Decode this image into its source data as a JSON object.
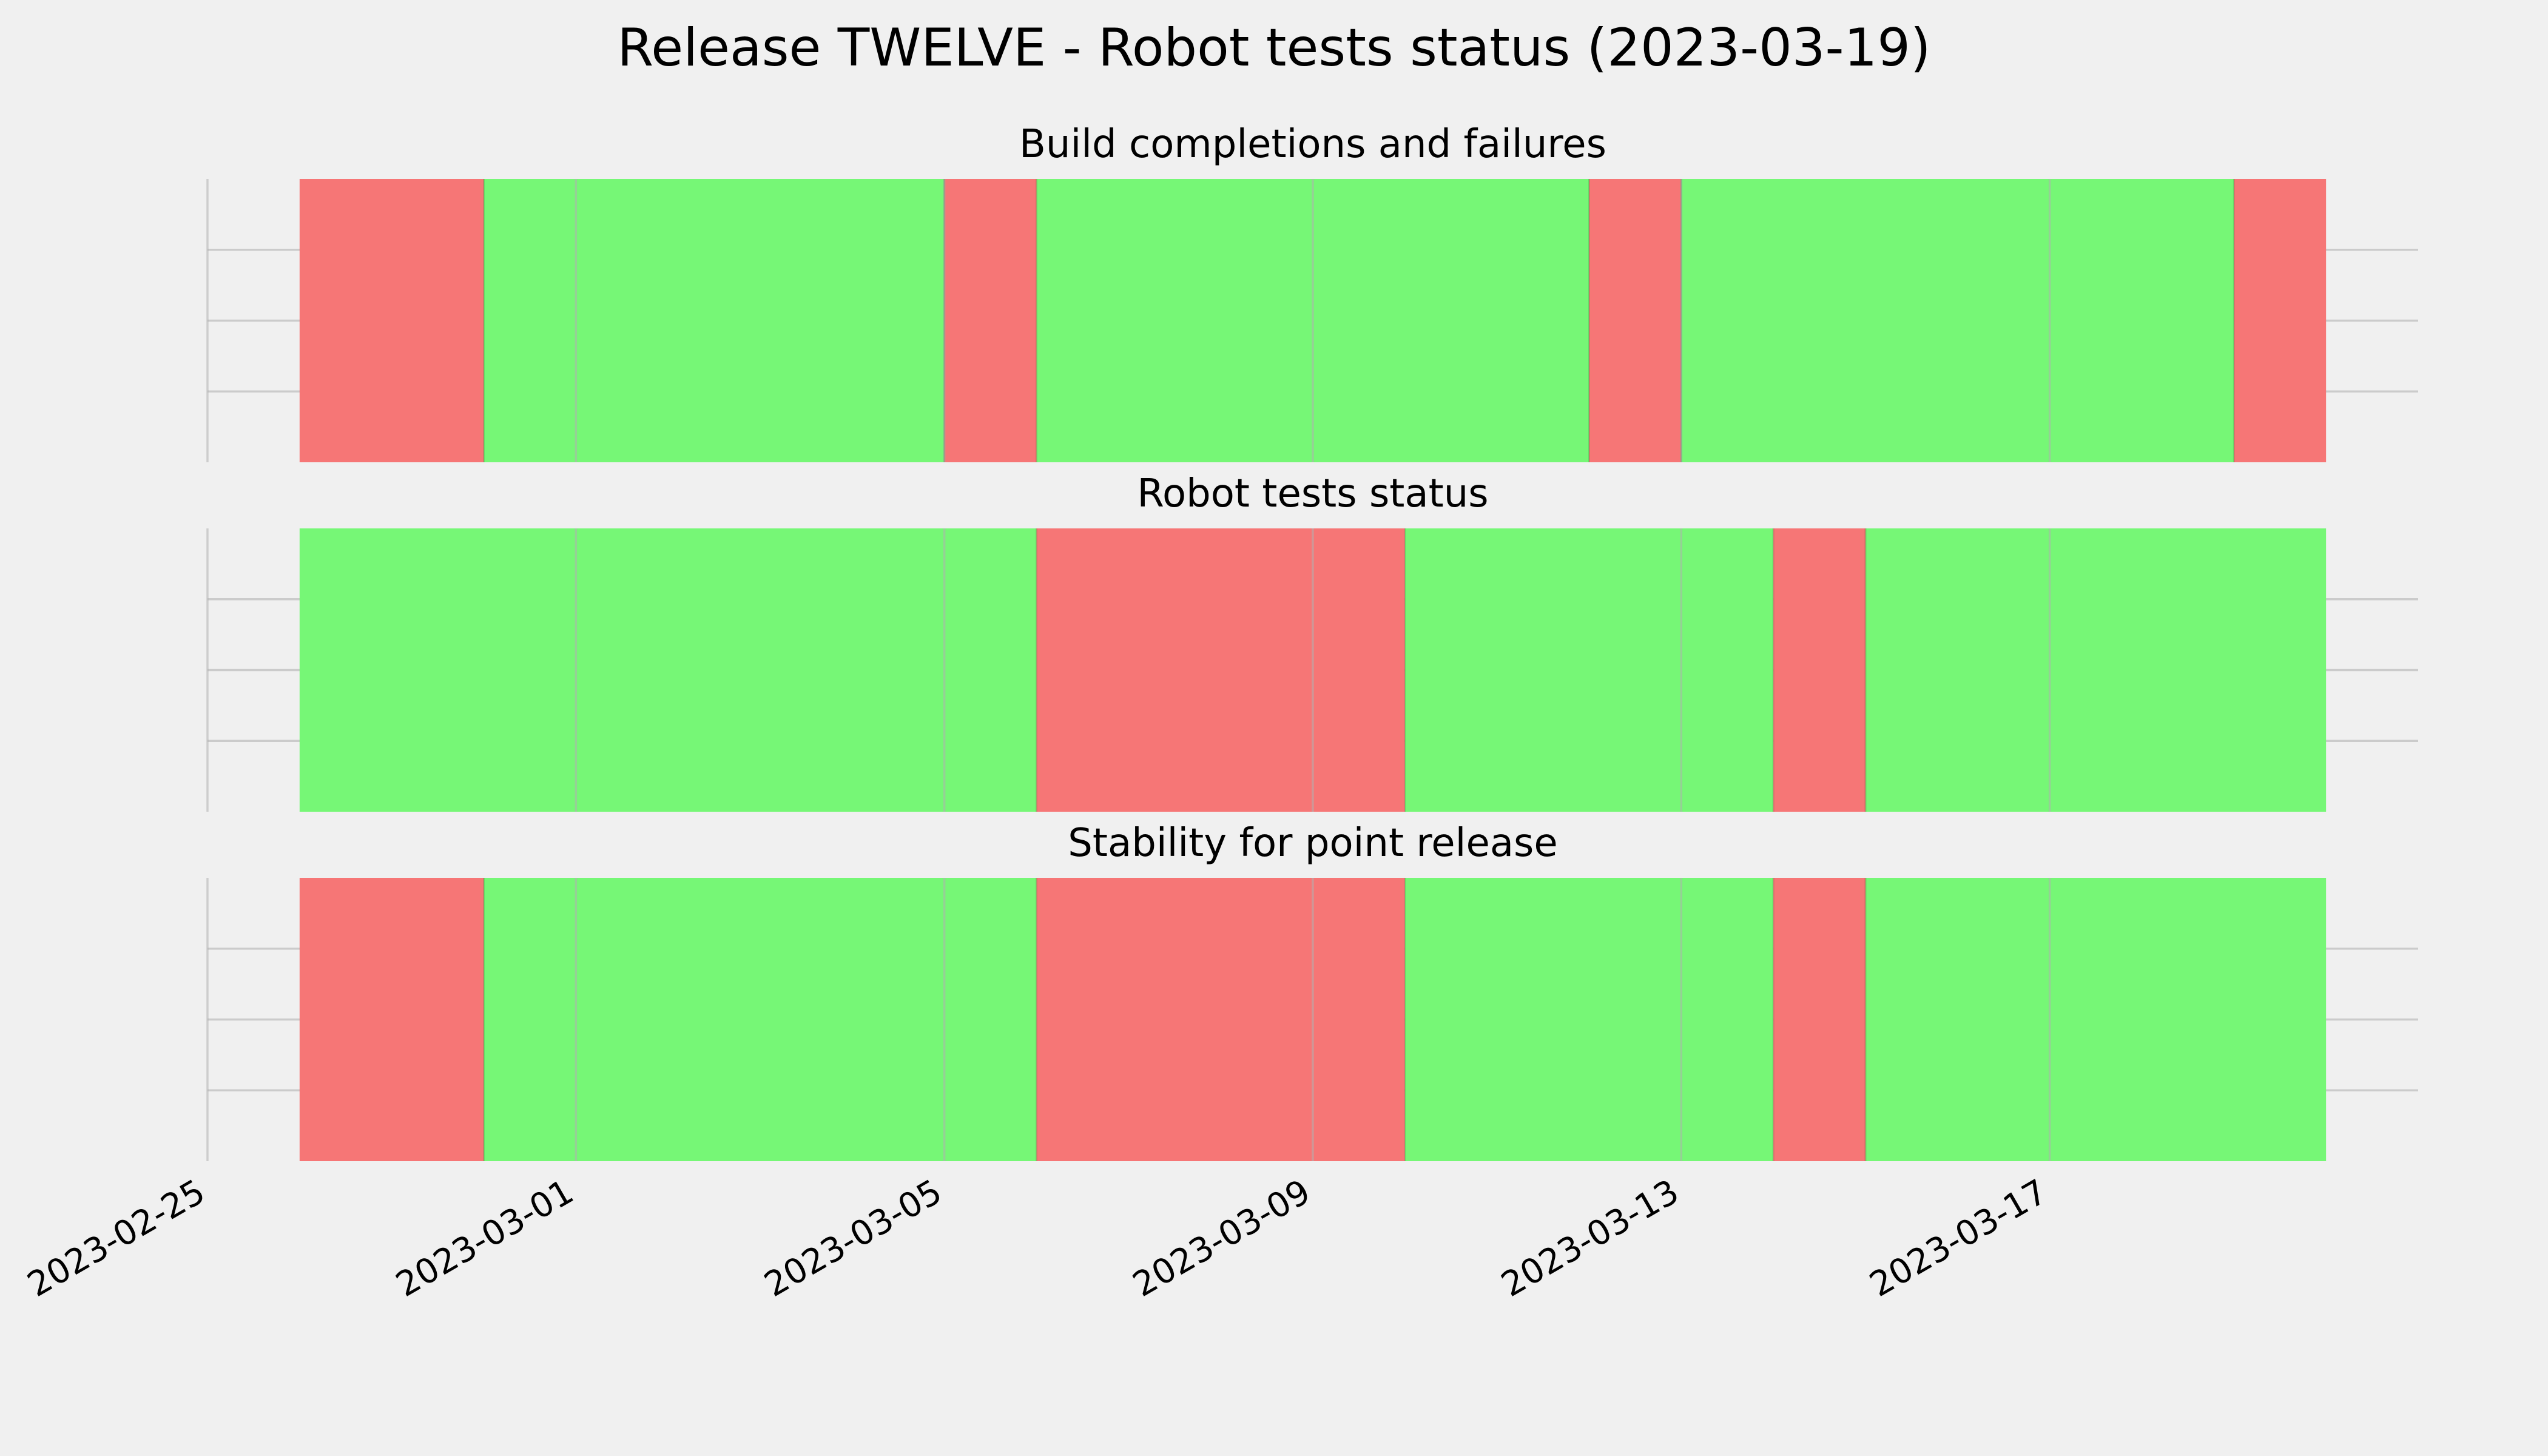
{
  "chart_data": {
    "type": "timeline",
    "title": "Release TWELVE - Robot tests status (2023-03-19)",
    "xlim": [
      "2023-02-25",
      "2023-03-21"
    ],
    "x_ticks": [
      "2023-02-25",
      "2023-03-01",
      "2023-03-05",
      "2023-03-09",
      "2023-03-13",
      "2023-03-17"
    ],
    "grid": true,
    "colors": {
      "pass": "#76f776",
      "fail": "#f67676",
      "background": "#f0f0f0"
    },
    "panels": [
      {
        "title": "Build completions and failures",
        "segments": [
          {
            "start": "2023-02-26",
            "end": "2023-02-28",
            "status": "fail"
          },
          {
            "start": "2023-02-28",
            "end": "2023-03-05",
            "status": "pass"
          },
          {
            "start": "2023-03-05",
            "end": "2023-03-06",
            "status": "fail"
          },
          {
            "start": "2023-03-06",
            "end": "2023-03-12",
            "status": "pass"
          },
          {
            "start": "2023-03-12",
            "end": "2023-03-13",
            "status": "fail"
          },
          {
            "start": "2023-03-13",
            "end": "2023-03-19",
            "status": "pass"
          },
          {
            "start": "2023-03-19",
            "end": "2023-03-20",
            "status": "fail"
          }
        ]
      },
      {
        "title": "Robot tests status",
        "segments": [
          {
            "start": "2023-02-26",
            "end": "2023-03-06",
            "status": "pass"
          },
          {
            "start": "2023-03-06",
            "end": "2023-03-10",
            "status": "fail"
          },
          {
            "start": "2023-03-10",
            "end": "2023-03-14",
            "status": "pass"
          },
          {
            "start": "2023-03-14",
            "end": "2023-03-15",
            "status": "fail"
          },
          {
            "start": "2023-03-15",
            "end": "2023-03-20",
            "status": "pass"
          }
        ]
      },
      {
        "title": "Stability for point release",
        "segments": [
          {
            "start": "2023-02-26",
            "end": "2023-02-28",
            "status": "fail"
          },
          {
            "start": "2023-02-28",
            "end": "2023-03-06",
            "status": "pass"
          },
          {
            "start": "2023-03-06",
            "end": "2023-03-10",
            "status": "fail"
          },
          {
            "start": "2023-03-10",
            "end": "2023-03-14",
            "status": "pass"
          },
          {
            "start": "2023-03-14",
            "end": "2023-03-15",
            "status": "fail"
          },
          {
            "start": "2023-03-15",
            "end": "2023-03-20",
            "status": "pass"
          }
        ]
      }
    ]
  }
}
